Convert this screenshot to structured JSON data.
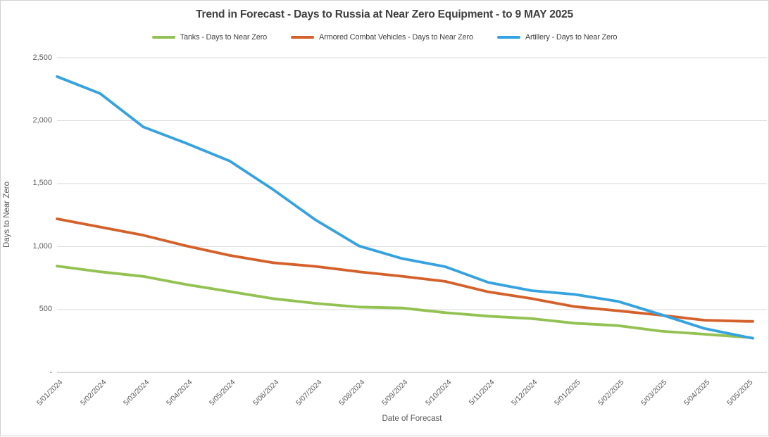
{
  "title": "Trend in Forecast - Days to Russia at Near Zero Equipment - to 9 MAY 2025",
  "axes": {
    "x_title": "Date of Forecast",
    "y_title": "Days to Near Zero"
  },
  "colors": {
    "tanks_green": "#93C152",
    "acv_orange": "#D4612B",
    "artillery_blue": "#36A2DF",
    "gridline": "#D9D9D9",
    "axis_line": "#C6C6C6",
    "text_gray": "#595959",
    "title_gray": "#3F3F3F"
  },
  "chart_data": {
    "type": "line",
    "title": "Trend in Forecast - Days to Russia at Near Zero Equipment - to 9 MAY 2025",
    "xlabel": "Date of Forecast",
    "ylabel": "Days to Near Zero",
    "ylim": [
      0,
      2500
    ],
    "yticks": [
      0,
      500,
      1000,
      1500,
      2000,
      2500
    ],
    "ytick_labels": [
      "-",
      "500",
      "1,000",
      "1,500",
      "2,000",
      "2,500"
    ],
    "grid": "horizontal",
    "legend_position": "top-center",
    "categories": [
      "5/01/2024",
      "5/02/2024",
      "5/03/2024",
      "5/04/2024",
      "5/05/2024",
      "5/06/2024",
      "5/07/2024",
      "5/08/2024",
      "5/09/2024",
      "5/10/2024",
      "5/11/2024",
      "5/12/2024",
      "5/01/2025",
      "5/02/2025",
      "5/03/2025",
      "5/04/2025",
      "5/05/2025"
    ],
    "series": [
      {
        "name": "Tanks - Days to Near Zero",
        "color": "#93C152",
        "values": [
          845,
          800,
          763,
          698,
          643,
          587,
          549,
          520,
          512,
          475,
          447,
          428,
          391,
          372,
          328,
          304,
          279
        ],
        "end_value": 273
      },
      {
        "name": "Armored Combat Vehicles - Days to Near Zero",
        "color": "#D4612B",
        "values": [
          1220,
          1155,
          1090,
          1005,
          930,
          872,
          842,
          800,
          764,
          723,
          640,
          587,
          523,
          490,
          455,
          415,
          406
        ],
        "end_value": 406
      },
      {
        "name": "Artillery - Days to Near Zero",
        "color": "#36A2DF",
        "values": [
          2350,
          2215,
          1950,
          1820,
          1680,
          1455,
          1210,
          1005,
          905,
          840,
          715,
          650,
          620,
          565,
          460,
          350,
          280
        ],
        "end_value": 272
      }
    ],
    "endpoint_note": "to 9 MAY 2025"
  },
  "legend": {
    "items": [
      {
        "label": "Tanks - Days to Near Zero",
        "color": "#93C152"
      },
      {
        "label": "Armored Combat Vehicles - Days to Near Zero",
        "color": "#D4612B"
      },
      {
        "label": "Artillery - Days to Near Zero",
        "color": "#36A2DF"
      }
    ]
  }
}
